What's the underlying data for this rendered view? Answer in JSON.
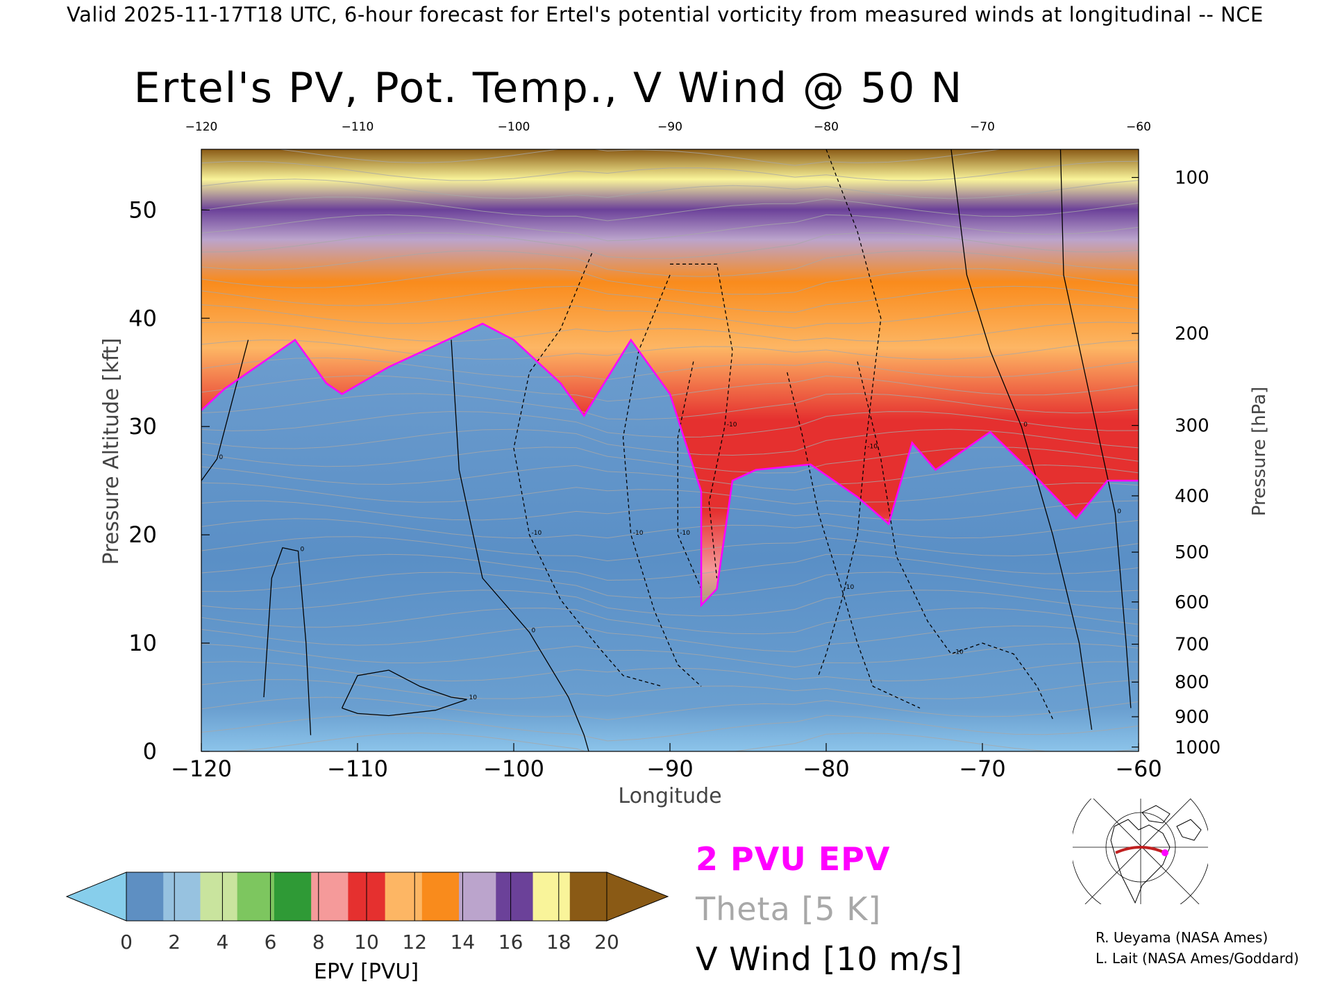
{
  "banner": "Valid 2025-11-17T18 UTC, 6-hour forecast for Ertel's potential vorticity from measured winds at longitudinal -- NCE",
  "chart_data": {
    "type": "heatmap",
    "title": "Ertel's PV, Pot. Temp., V Wind @ 50 N",
    "xlabel": "Longitude",
    "ylabel_left": "Pressure Altitude [kft]",
    "ylabel_right": "Pressure [hPa]",
    "xlim": [
      -120,
      -60
    ],
    "ylim": [
      0,
      55.6
    ],
    "x_ticks": [
      "-120",
      "-110",
      "-100",
      "-90",
      "-80",
      "-70",
      "-60"
    ],
    "top_x_ticks": [
      "-120",
      "-110",
      "-100",
      "-90",
      "-80",
      "-70",
      "-60"
    ],
    "y_ticks": [
      "0",
      "10",
      "20",
      "30",
      "40",
      "50"
    ],
    "pressure_ticks": [
      {
        "label": "100",
        "kft": 53.0
      },
      {
        "label": "200",
        "kft": 38.6
      },
      {
        "label": "300",
        "kft": 30.1
      },
      {
        "label": "400",
        "kft": 23.6
      },
      {
        "label": "500",
        "kft": 18.4
      },
      {
        "label": "600",
        "kft": 13.8
      },
      {
        "label": "700",
        "kft": 9.9
      },
      {
        "label": "800",
        "kft": 6.4
      },
      {
        "label": "900",
        "kft": 3.2
      },
      {
        "label": "1000",
        "kft": 0.4
      }
    ],
    "tropopause_2pvu": [
      [
        -120,
        31.5
      ],
      [
        -118.5,
        33.5
      ],
      [
        -116.5,
        35.5
      ],
      [
        -114,
        38.0
      ],
      [
        -112,
        34.0
      ],
      [
        -111,
        33.0
      ],
      [
        -108,
        35.5
      ],
      [
        -105,
        37.5
      ],
      [
        -102,
        39.5
      ],
      [
        -100,
        38.0
      ],
      [
        -97,
        34.0
      ],
      [
        -95.5,
        31.0
      ],
      [
        -92.5,
        38.0
      ],
      [
        -90,
        33.0
      ],
      [
        -88,
        24.0
      ],
      [
        -88,
        13.5
      ],
      [
        -87,
        15.0
      ],
      [
        -86,
        25.0
      ],
      [
        -84.5,
        26.0
      ],
      [
        -81,
        26.5
      ],
      [
        -78,
        23.5
      ],
      [
        -76,
        21.0
      ],
      [
        -74.5,
        28.5
      ],
      [
        -73,
        26.0
      ],
      [
        -71,
        28.0
      ],
      [
        -69.5,
        29.5
      ],
      [
        -67,
        26.0
      ],
      [
        -64,
        21.5
      ],
      [
        -62,
        25.0
      ],
      [
        -60,
        25.0
      ]
    ],
    "wind_contours": [
      {
        "label": "0",
        "points": [
          [
            -104,
            38
          ],
          [
            -103.5,
            26
          ],
          [
            -102,
            16
          ],
          [
            -99,
            11
          ],
          [
            -96.5,
            5
          ],
          [
            -95.5,
            1.5
          ],
          [
            -95.2,
            0
          ]
        ]
      },
      {
        "label": "0",
        "points": [
          [
            -72,
            55.6
          ],
          [
            -71,
            44
          ],
          [
            -69.5,
            37
          ],
          [
            -67.5,
            30
          ],
          [
            -65.5,
            20
          ],
          [
            -63.8,
            10
          ],
          [
            -63,
            2
          ]
        ]
      },
      {
        "label": "0",
        "points": [
          [
            -65,
            55.6
          ],
          [
            -64.8,
            44
          ],
          [
            -63,
            32
          ],
          [
            -61.5,
            22
          ],
          [
            -60.8,
            10
          ],
          [
            -60.5,
            4
          ]
        ]
      },
      {
        "label": "0",
        "points": [
          [
            -117,
            38
          ],
          [
            -119,
            27
          ],
          [
            -120,
            25
          ]
        ]
      },
      {
        "label": "0",
        "points": [
          [
            -116,
            5
          ],
          [
            -115.5,
            16
          ],
          [
            -114.8,
            18.8
          ],
          [
            -113.8,
            18.5
          ],
          [
            -113.3,
            10
          ],
          [
            -113,
            1.5
          ]
        ]
      },
      {
        "label": "10",
        "points": [
          [
            -111,
            4
          ],
          [
            -110,
            7
          ],
          [
            -108,
            7.5
          ],
          [
            -106,
            6
          ],
          [
            -104,
            5
          ],
          [
            -103,
            4.8
          ],
          [
            -105,
            3.8
          ],
          [
            -108,
            3.3
          ],
          [
            -110,
            3.5
          ],
          [
            -111,
            4
          ]
        ]
      },
      {
        "label": "-10",
        "points": [
          [
            -95,
            46
          ],
          [
            -97,
            39
          ],
          [
            -99,
            35
          ],
          [
            -100,
            28
          ],
          [
            -99,
            20
          ],
          [
            -97,
            14
          ],
          [
            -94.5,
            9.5
          ],
          [
            -93,
            7
          ],
          [
            -90.5,
            6
          ]
        ]
      },
      {
        "label": "-10",
        "points": [
          [
            -90,
            44
          ],
          [
            -92,
            37
          ],
          [
            -93,
            29
          ],
          [
            -92.5,
            20
          ],
          [
            -91,
            13
          ],
          [
            -89.5,
            8
          ],
          [
            -88,
            6
          ]
        ]
      },
      {
        "label": "-10",
        "points": [
          [
            -88.5,
            36
          ],
          [
            -89.5,
            29
          ],
          [
            -89.5,
            20
          ],
          [
            -88,
            15
          ]
        ]
      },
      {
        "label": "-10",
        "points": [
          [
            -90,
            45
          ],
          [
            -87,
            45
          ],
          [
            -86,
            37
          ],
          [
            -86.5,
            30
          ],
          [
            -87.5,
            23
          ],
          [
            -87,
            16
          ]
        ]
      },
      {
        "label": "-10",
        "points": [
          [
            -80,
            55.6
          ],
          [
            -78,
            48
          ],
          [
            -76.5,
            40
          ],
          [
            -77,
            34
          ],
          [
            -77.5,
            28
          ],
          [
            -78,
            20
          ],
          [
            -79,
            14
          ],
          [
            -80,
            9
          ],
          [
            -80.5,
            7
          ]
        ]
      },
      {
        "label": "-10",
        "points": [
          [
            -82.5,
            35
          ],
          [
            -81.5,
            29
          ],
          [
            -80.5,
            22
          ],
          [
            -79,
            15
          ],
          [
            -78,
            10
          ],
          [
            -77,
            6
          ],
          [
            -74,
            4
          ]
        ]
      },
      {
        "label": "-10",
        "points": [
          [
            -78,
            36
          ],
          [
            -76.5,
            27
          ],
          [
            -75.5,
            18
          ],
          [
            -73.5,
            12
          ],
          [
            -72,
            9
          ],
          [
            -70,
            10
          ],
          [
            -68,
            9
          ],
          [
            -66.5,
            6
          ],
          [
            -65.5,
            3
          ]
        ]
      }
    ],
    "colorbar": {
      "label": "EPV [PVU]",
      "ticks": [
        "0",
        "2",
        "4",
        "6",
        "8",
        "10",
        "12",
        "14",
        "16",
        "18",
        "20"
      ],
      "colors": [
        "#5e8fc2",
        "#97c2e0",
        "#c9e49e",
        "#7dc65f",
        "#2f9a36",
        "#f59a9a",
        "#e5302f",
        "#fdb664",
        "#f98b1c",
        "#bba4cc",
        "#6b4199",
        "#f9f49a",
        "#8a5a15"
      ],
      "under_color": "#87ceeb",
      "over_color": "#8a5a15"
    }
  },
  "legend": {
    "epv": "2 PVU EPV",
    "theta": "Theta [5 K]",
    "wind": "V Wind [10 m/s]"
  },
  "credits": {
    "line1": "R. Ueyama (NASA Ames)",
    "line2": "L. Lait (NASA Ames/Goddard)"
  },
  "colors": {
    "tropopause": "#ff00ff",
    "theta": "#a8a8a8",
    "wind": "#000000",
    "stratosphere_red": "#e5302f",
    "troposphere_blue": "#4f86bf"
  },
  "inset_map_icon": "globe-section-map-icon"
}
